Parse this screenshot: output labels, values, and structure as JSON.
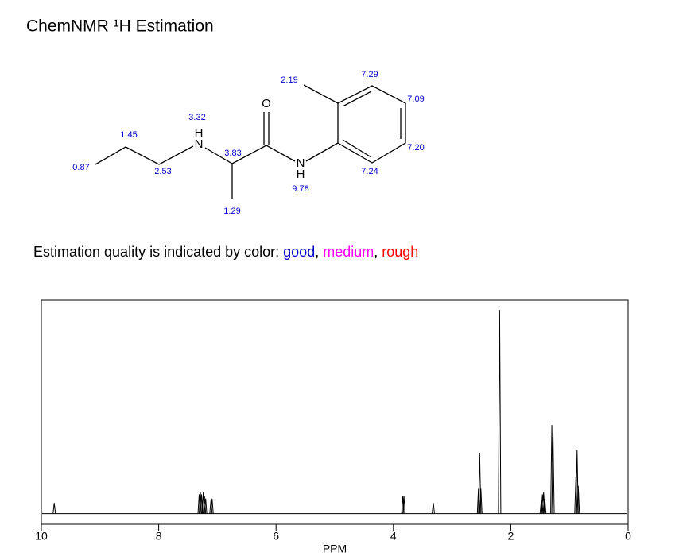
{
  "title": "ChemNMR ¹H Estimation",
  "molecule": {
    "atoms": [
      "N",
      "H",
      "O",
      "N",
      "H"
    ],
    "shifts": [
      "0.87",
      "1.45",
      "2.53",
      "3.32",
      "3.83",
      "1.29",
      "9.78",
      "2.19",
      "7.29",
      "7.09",
      "7.20",
      "7.24"
    ],
    "shift_color": "#0000cc"
  },
  "note": [
    {
      "text": "Estimation quality is indicated by color: ",
      "color": "#000000"
    },
    {
      "text": "good",
      "color": "#0000cc"
    },
    {
      "text": ", ",
      "color": "#000000"
    },
    {
      "text": "medium",
      "color": "#ff00ff"
    },
    {
      "text": ", ",
      "color": "#000000"
    },
    {
      "text": "rough",
      "color": "#ff0000"
    }
  ],
  "chart_data": {
    "type": "spectrum",
    "x_label": "PPM",
    "x": [
      9.78,
      7.31,
      7.29,
      7.27,
      7.24,
      7.22,
      7.2,
      7.11,
      7.09,
      3.84,
      3.82,
      3.32,
      2.55,
      2.53,
      2.51,
      2.19,
      1.48,
      1.46,
      1.44,
      1.42,
      1.3,
      1.28,
      0.89,
      0.87,
      0.85
    ],
    "values": [
      5,
      9,
      10,
      9,
      10,
      8,
      7,
      6,
      7,
      8,
      8,
      5,
      12,
      28.5,
      12,
      95.5,
      6,
      9,
      10,
      7,
      41.5,
      37,
      17,
      30,
      13
    ],
    "xlim": [
      10,
      0
    ],
    "xticks": [
      10,
      8,
      6,
      4,
      2,
      0
    ],
    "ylim": [
      -5,
      100
    ],
    "color": "#000000"
  }
}
